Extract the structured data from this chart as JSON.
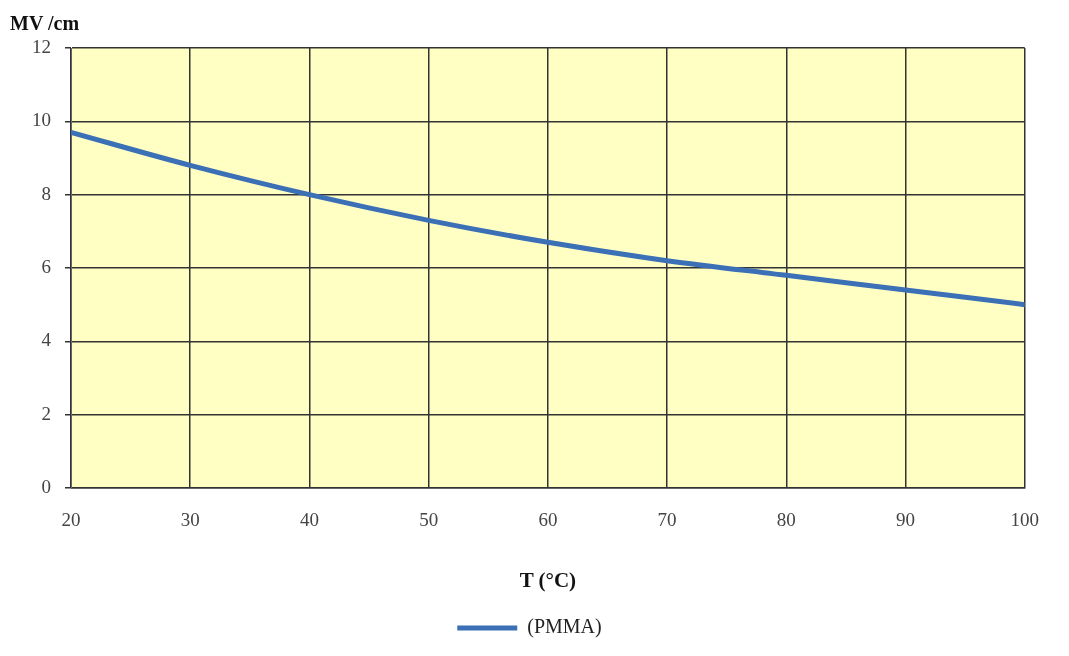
{
  "chart_data": {
    "type": "line",
    "xlabel": "T (°C)",
    "ylabel": "MV /cm",
    "x": [
      20,
      30,
      40,
      50,
      60,
      70,
      80,
      90,
      100
    ],
    "series": [
      {
        "name": "(PMMA)",
        "color": "#3b6fb6",
        "values": [
          9.7,
          8.8,
          8.0,
          7.3,
          6.7,
          6.2,
          5.8,
          5.4,
          5.0
        ]
      }
    ],
    "xlim": [
      20,
      100
    ],
    "xticks": [
      20,
      30,
      40,
      50,
      60,
      70,
      80,
      90,
      100
    ],
    "ylim": [
      0,
      12
    ],
    "yticks": [
      0,
      2,
      4,
      6,
      8,
      10,
      12
    ],
    "grid": true,
    "legend": "bottom",
    "marker": "none",
    "line_style": "solid"
  }
}
